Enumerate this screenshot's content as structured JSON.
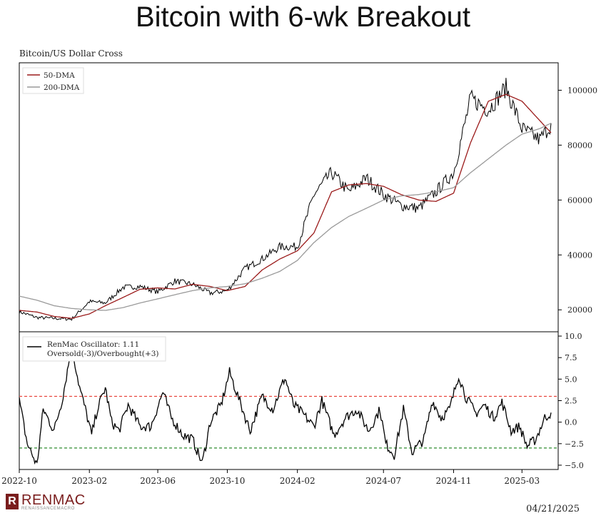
{
  "title": "Bitcoin with 6-wk Breakout",
  "date_stamp": "04/21/2025",
  "logo": {
    "word": "RENMAC",
    "sub": "RENAISSANCEMACRO",
    "mark": "R"
  },
  "colors": {
    "price": "#000000",
    "dma50": "#9b1b1b",
    "dma200": "#9a9a9a",
    "overbought": "#e8453c",
    "oversold": "#2e8b2e"
  },
  "chart_data": [
    {
      "type": "line",
      "title": "Bitcoin/US Dollar Cross",
      "legend_placement": "top-left",
      "ylim": [
        12000,
        110000
      ],
      "yticks": [
        20000,
        40000,
        60000,
        80000,
        100000
      ],
      "ytick_labels": [
        "20000",
        "40000",
        "60000",
        "80000",
        "100000"
      ],
      "x": [
        "2022-10-01",
        "2022-11-01",
        "2022-12-01",
        "2023-01-01",
        "2023-02-01",
        "2023-03-01",
        "2023-04-01",
        "2023-05-01",
        "2023-06-01",
        "2023-07-01",
        "2023-08-01",
        "2023-09-01",
        "2023-10-01",
        "2023-11-01",
        "2023-12-01",
        "2024-01-01",
        "2024-02-01",
        "2024-03-01",
        "2024-04-01",
        "2024-05-01",
        "2024-06-01",
        "2024-07-01",
        "2024-08-01",
        "2024-09-01",
        "2024-10-01",
        "2024-11-01",
        "2024-12-01",
        "2025-01-01",
        "2025-02-01",
        "2025-03-01",
        "2025-04-01",
        "2025-04-21"
      ],
      "series": [
        {
          "name": "",
          "role": "price",
          "values": [
            19300,
            17200,
            16900,
            16600,
            23000,
            22500,
            28200,
            28500,
            26500,
            30500,
            29300,
            26100,
            27000,
            35000,
            38500,
            43000,
            43000,
            62000,
            70000,
            63000,
            68000,
            62000,
            58000,
            57000,
            63000,
            70000,
            97000,
            93000,
            101000,
            86000,
            82000,
            87500
          ]
        },
        {
          "name": "50-DMA",
          "role": "dma50",
          "values": [
            19800,
            19200,
            17600,
            16900,
            18500,
            21500,
            24500,
            27500,
            28000,
            27600,
            29300,
            28500,
            27000,
            28500,
            34500,
            38500,
            41500,
            48000,
            63000,
            65500,
            66000,
            65000,
            62000,
            60000,
            59500,
            62500,
            81000,
            96000,
            98500,
            96000,
            89000,
            84500
          ]
        },
        {
          "name": "200-DMA",
          "role": "dma200",
          "values": [
            25000,
            23500,
            21500,
            20500,
            20000,
            19800,
            20800,
            22500,
            24000,
            25500,
            27000,
            28000,
            28500,
            29500,
            31500,
            34000,
            38000,
            44500,
            50000,
            54000,
            57000,
            60000,
            61500,
            62000,
            63000,
            64500,
            70000,
            75000,
            80000,
            84000,
            86000,
            88000
          ]
        }
      ]
    },
    {
      "type": "line",
      "ylim": [
        -5.5,
        10.5
      ],
      "yticks": [
        -5,
        -2.5,
        0,
        2.5,
        5,
        7.5,
        10
      ],
      "ytick_labels": [
        "−5.0",
        "−2.5",
        "0.0",
        "2.5",
        "5.0",
        "7.5",
        "10.0"
      ],
      "xticks": [
        "2022-10-01",
        "2023-02-01",
        "2023-06-01",
        "2023-10-01",
        "2024-02-01",
        "2024-07-01",
        "2024-11-01",
        "2025-03-01"
      ],
      "xtick_labels": [
        "2022-10",
        "2023-02",
        "2023-06",
        "2023-10",
        "2024-02",
        "2024-07",
        "2024-11",
        "2025-03"
      ],
      "legend": [
        "RenMac Oscillator: 1.11",
        "Oversold(-3)/Overbought(+3)"
      ],
      "overbought_level": 3,
      "oversold_level": -3,
      "series": [
        {
          "name": "RenMac Oscillator: 1.11",
          "x": [
            "2022-10-01",
            "2022-10-15",
            "2022-11-01",
            "2022-11-12",
            "2022-12-01",
            "2022-12-15",
            "2023-01-01",
            "2023-01-15",
            "2023-01-25",
            "2023-02-05",
            "2023-02-15",
            "2023-03-01",
            "2023-03-12",
            "2023-03-25",
            "2023-04-10",
            "2023-05-01",
            "2023-05-20",
            "2023-06-10",
            "2023-06-25",
            "2023-07-15",
            "2023-08-01",
            "2023-08-18",
            "2023-09-01",
            "2023-09-20",
            "2023-10-05",
            "2023-10-25",
            "2023-11-10",
            "2023-12-01",
            "2023-12-20",
            "2024-01-10",
            "2024-01-25",
            "2024-02-10",
            "2024-03-01",
            "2024-03-15",
            "2024-04-05",
            "2024-04-25",
            "2024-05-15",
            "2024-06-05",
            "2024-06-25",
            "2024-07-05",
            "2024-07-20",
            "2024-08-05",
            "2024-08-20",
            "2024-09-10",
            "2024-09-25",
            "2024-10-10",
            "2024-10-25",
            "2024-11-10",
            "2024-11-22",
            "2024-12-10",
            "2024-12-25",
            "2025-01-10",
            "2025-01-25",
            "2025-02-10",
            "2025-02-25",
            "2025-03-10",
            "2025-03-25",
            "2025-04-10",
            "2025-04-21"
          ],
          "values": [
            2.5,
            -2.5,
            -5,
            1.5,
            -1,
            2.5,
            8.8,
            4,
            1.5,
            -1.5,
            1.5,
            4,
            0,
            -1,
            2,
            -0.5,
            -0.5,
            3.5,
            0.5,
            -1.5,
            -2,
            -4.8,
            0,
            2,
            5.8,
            2,
            -1,
            3,
            1.5,
            5.2,
            2,
            1,
            -0.5,
            2.5,
            -1.5,
            0.5,
            1.5,
            -1,
            1.5,
            -2.5,
            -3.8,
            1.5,
            -3.5,
            -2,
            2.5,
            0.5,
            1.5,
            5.5,
            3,
            1,
            2,
            0.5,
            2.3,
            -1,
            -0.5,
            -2.8,
            -2,
            0.5,
            1.11
          ]
        }
      ]
    }
  ]
}
